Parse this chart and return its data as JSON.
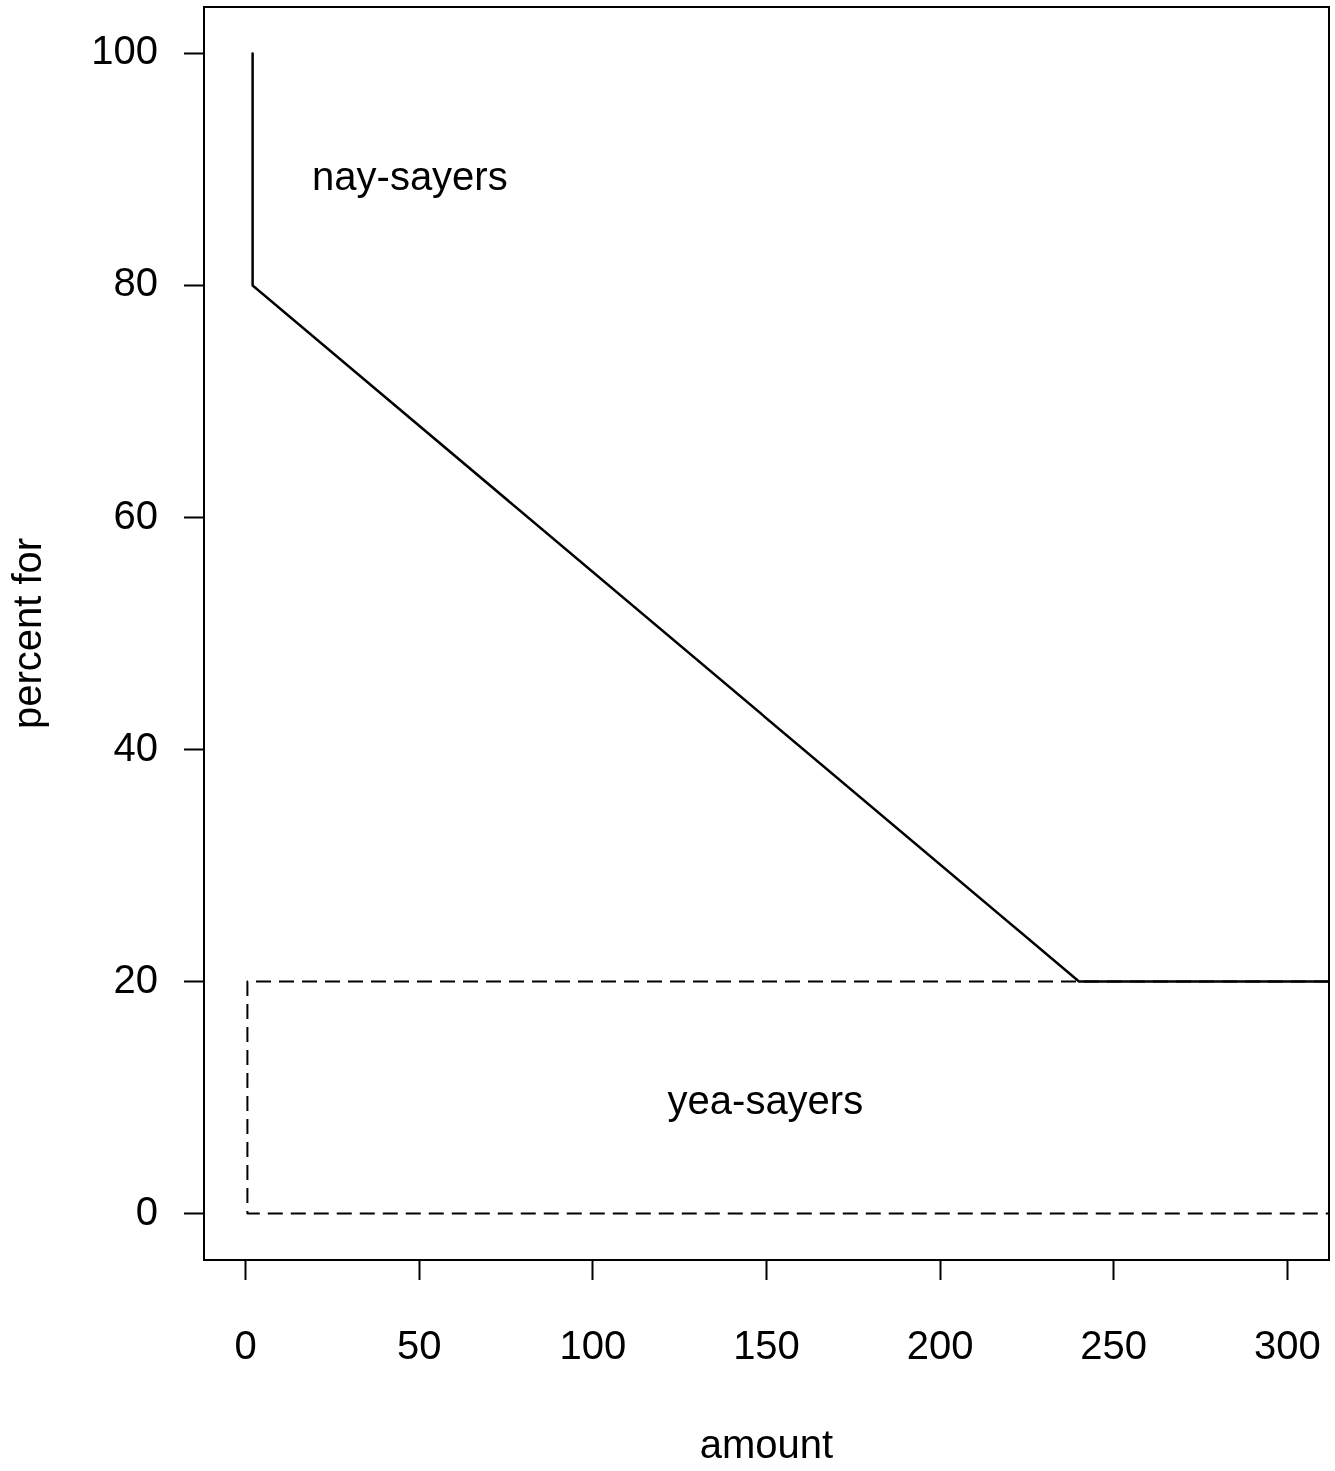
{
  "chart_data": {
    "type": "line",
    "xlabel": "amount",
    "ylabel": "percent for",
    "xlim": [
      -12,
      312
    ],
    "ylim": [
      -4,
      104
    ],
    "xticks": [
      0,
      50,
      100,
      150,
      200,
      250,
      300
    ],
    "yticks": [
      0,
      20,
      40,
      60,
      80,
      100
    ],
    "marker": "none",
    "series": [
      {
        "x": [
          2,
          2,
          240,
          312
        ],
        "values": [
          100,
          80,
          20,
          20
        ],
        "color": "#000000",
        "line_style": "solid"
      },
      {
        "x": [
          312,
          0.5,
          0.5,
          312
        ],
        "values": [
          20,
          20,
          0,
          0
        ],
        "color": "#000000",
        "line_style": "dashed"
      }
    ],
    "annotations": [
      "nay-sayers",
      "yea-sayers"
    ]
  }
}
